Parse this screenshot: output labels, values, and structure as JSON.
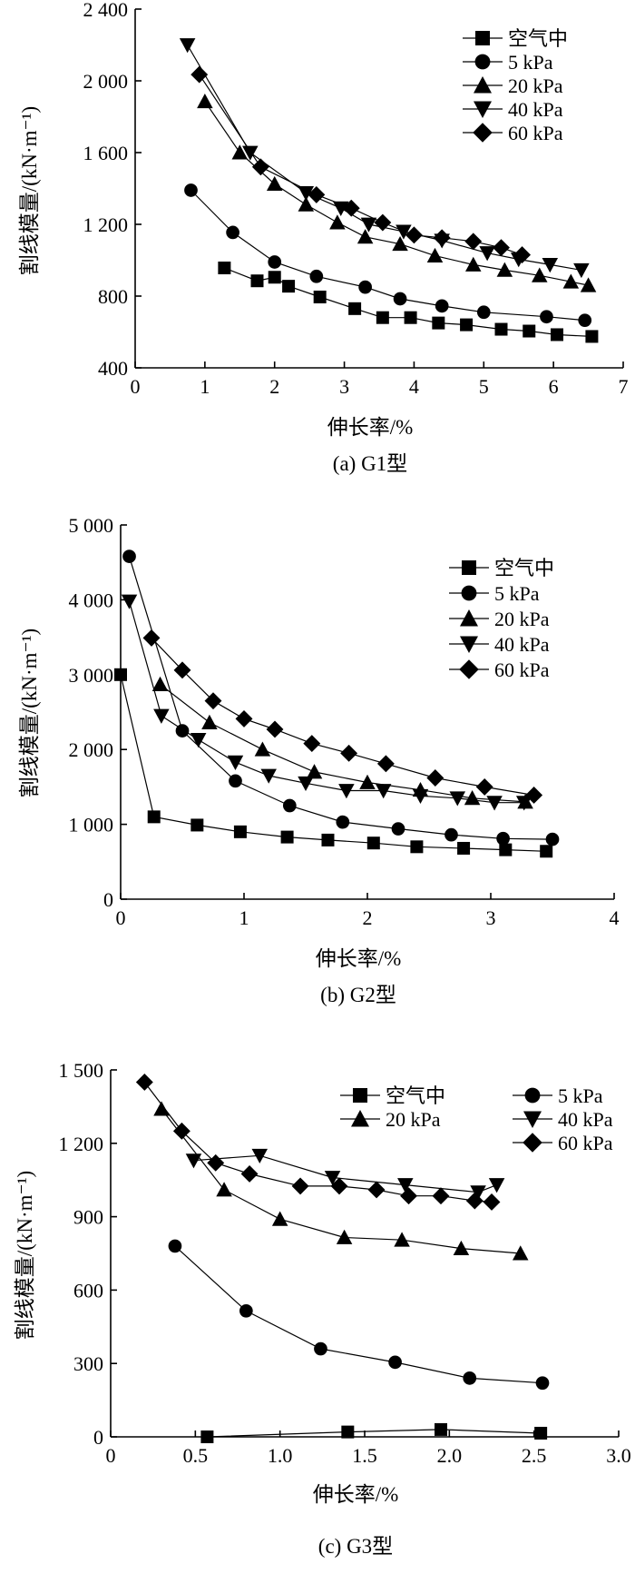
{
  "chart_data": [
    {
      "type": "line",
      "caption": "(a) G1型",
      "xlabel": "伸长率/%",
      "ylabel": "割线模量/(kN·m⁻¹)",
      "xlim": [
        0,
        7
      ],
      "ylim": [
        400,
        2400
      ],
      "xticks": [
        "0",
        "1",
        "2",
        "3",
        "4",
        "5",
        "6",
        "7"
      ],
      "yticks": [
        "400",
        "800",
        "1 200",
        "1 600",
        "2 000",
        "2 400"
      ],
      "series": [
        {
          "name": "空气中",
          "marker": "square",
          "x": [
            1.28,
            1.75,
            2.0,
            2.2,
            2.65,
            3.15,
            3.55,
            3.95,
            4.35,
            4.75,
            5.25,
            5.65,
            6.05,
            6.55
          ],
          "y": [
            957,
            885,
            905,
            855,
            795,
            730,
            680,
            680,
            650,
            640,
            615,
            605,
            585,
            575
          ]
        },
        {
          "name": "5 kPa",
          "marker": "circle",
          "x": [
            0.8,
            1.4,
            2.0,
            2.6,
            3.3,
            3.8,
            4.4,
            5.0,
            5.9,
            6.45
          ],
          "y": [
            1390,
            1155,
            990,
            910,
            850,
            785,
            745,
            710,
            685,
            665
          ]
        },
        {
          "name": "20 kPa",
          "marker": "triangle-up",
          "x": [
            1.0,
            1.5,
            2.0,
            2.45,
            2.9,
            3.3,
            3.8,
            4.3,
            4.85,
            5.3,
            5.8,
            6.25,
            6.5
          ],
          "y": [
            1885,
            1600,
            1425,
            1310,
            1210,
            1130,
            1090,
            1025,
            975,
            945,
            915,
            880,
            860
          ]
        },
        {
          "name": "40 kPa",
          "marker": "triangle-down",
          "x": [
            0.75,
            1.65,
            2.45,
            2.95,
            3.35,
            3.85,
            4.4,
            5.05,
            5.5,
            5.95,
            6.4
          ],
          "y": [
            2200,
            1600,
            1375,
            1290,
            1200,
            1160,
            1110,
            1040,
            1005,
            975,
            945
          ]
        },
        {
          "name": "60 kPa",
          "marker": "diamond",
          "x": [
            0.92,
            1.8,
            2.6,
            3.1,
            3.55,
            4.0,
            4.4,
            4.85,
            5.25,
            5.55
          ],
          "y": [
            2035,
            1520,
            1365,
            1290,
            1210,
            1140,
            1125,
            1105,
            1070,
            1030
          ]
        }
      ],
      "legend": [
        "空气中",
        "5 kPa",
        "20 kPa",
        "40 kPa",
        "60 kPa"
      ]
    },
    {
      "type": "line",
      "caption": "(b) G2型",
      "xlabel": "伸长率/%",
      "ylabel": "割线模量/(kN·m⁻¹)",
      "xlim": [
        0,
        4
      ],
      "ylim": [
        0,
        5000
      ],
      "xticks": [
        "0",
        "1",
        "2",
        "3",
        "4"
      ],
      "yticks": [
        "0",
        "1 000",
        "2 000",
        "3 000",
        "4 000",
        "5 000"
      ],
      "series": [
        {
          "name": "空气中",
          "marker": "square",
          "x": [
            0.0,
            0.27,
            0.62,
            0.97,
            1.35,
            1.68,
            2.05,
            2.4,
            2.78,
            3.12,
            3.45
          ],
          "y": [
            3000,
            1100,
            990,
            900,
            830,
            790,
            750,
            700,
            680,
            660,
            640
          ]
        },
        {
          "name": "5 kPa",
          "marker": "circle",
          "x": [
            0.07,
            0.5,
            0.93,
            1.37,
            1.8,
            2.25,
            2.68,
            3.1,
            3.5
          ],
          "y": [
            4580,
            2250,
            1580,
            1250,
            1030,
            940,
            860,
            810,
            800
          ]
        },
        {
          "name": "20 kPa",
          "marker": "triangle-up",
          "x": [
            0.32,
            0.72,
            1.15,
            1.57,
            2.0,
            2.43,
            2.85,
            3.28
          ],
          "y": [
            2870,
            2360,
            2000,
            1700,
            1560,
            1460,
            1350,
            1300
          ]
        },
        {
          "name": "40 kPa",
          "marker": "triangle-down",
          "x": [
            0.07,
            0.33,
            0.63,
            0.93,
            1.2,
            1.5,
            1.83,
            2.13,
            2.43,
            2.73,
            3.03,
            3.27
          ],
          "y": [
            3980,
            2450,
            2130,
            1830,
            1650,
            1550,
            1450,
            1450,
            1380,
            1350,
            1290,
            1290
          ]
        },
        {
          "name": "60 kPa",
          "marker": "diamond",
          "x": [
            0.25,
            0.5,
            0.75,
            1.0,
            1.25,
            1.55,
            1.85,
            2.15,
            2.55,
            2.95,
            3.35
          ],
          "y": [
            3490,
            3060,
            2650,
            2410,
            2270,
            2080,
            1950,
            1810,
            1620,
            1500,
            1390
          ]
        }
      ],
      "legend": [
        "空气中",
        "5 kPa",
        "20 kPa",
        "40 kPa",
        "60 kPa"
      ]
    },
    {
      "type": "line",
      "caption": "(c) G3型",
      "xlabel": "伸长率/%",
      "ylabel": "割线模量/(kN·m⁻¹)",
      "xlim": [
        0,
        3.0
      ],
      "ylim": [
        0,
        1500
      ],
      "xticks": [
        "0",
        "0.5",
        "1.0",
        "1.5",
        "2.0",
        "2.5",
        "3.0"
      ],
      "yticks": [
        "0",
        "300",
        "600",
        "900",
        "1 200",
        "1 500"
      ],
      "series": [
        {
          "name": "空气中",
          "marker": "square",
          "x": [
            0.57,
            1.4,
            1.95,
            2.54
          ],
          "y": [
            0,
            20,
            30,
            15
          ]
        },
        {
          "name": "5 kPa",
          "marker": "circle",
          "x": [
            0.38,
            0.8,
            1.24,
            1.68,
            2.12,
            2.55
          ],
          "y": [
            780,
            515,
            360,
            305,
            240,
            220
          ]
        },
        {
          "name": "20 kPa",
          "marker": "triangle-up",
          "x": [
            0.3,
            0.67,
            1.0,
            1.38,
            1.72,
            2.07,
            2.42
          ],
          "y": [
            1340,
            1010,
            890,
            815,
            805,
            770,
            750
          ]
        },
        {
          "name": "40 kPa",
          "marker": "triangle-down",
          "x": [
            0.49,
            0.88,
            1.31,
            1.74,
            2.17,
            2.28
          ],
          "y": [
            1130,
            1150,
            1060,
            1030,
            1000,
            1030
          ]
        },
        {
          "name": "60 kPa",
          "marker": "diamond",
          "x": [
            0.2,
            0.42,
            0.62,
            0.82,
            1.12,
            1.35,
            1.57,
            1.76,
            1.95,
            2.15,
            2.25
          ],
          "y": [
            1450,
            1250,
            1120,
            1075,
            1025,
            1025,
            1010,
            985,
            985,
            965,
            960
          ]
        }
      ],
      "legend": [
        "空气中",
        "20 kPa",
        "5 kPa",
        "40 kPa",
        "60 kPa"
      ]
    }
  ]
}
